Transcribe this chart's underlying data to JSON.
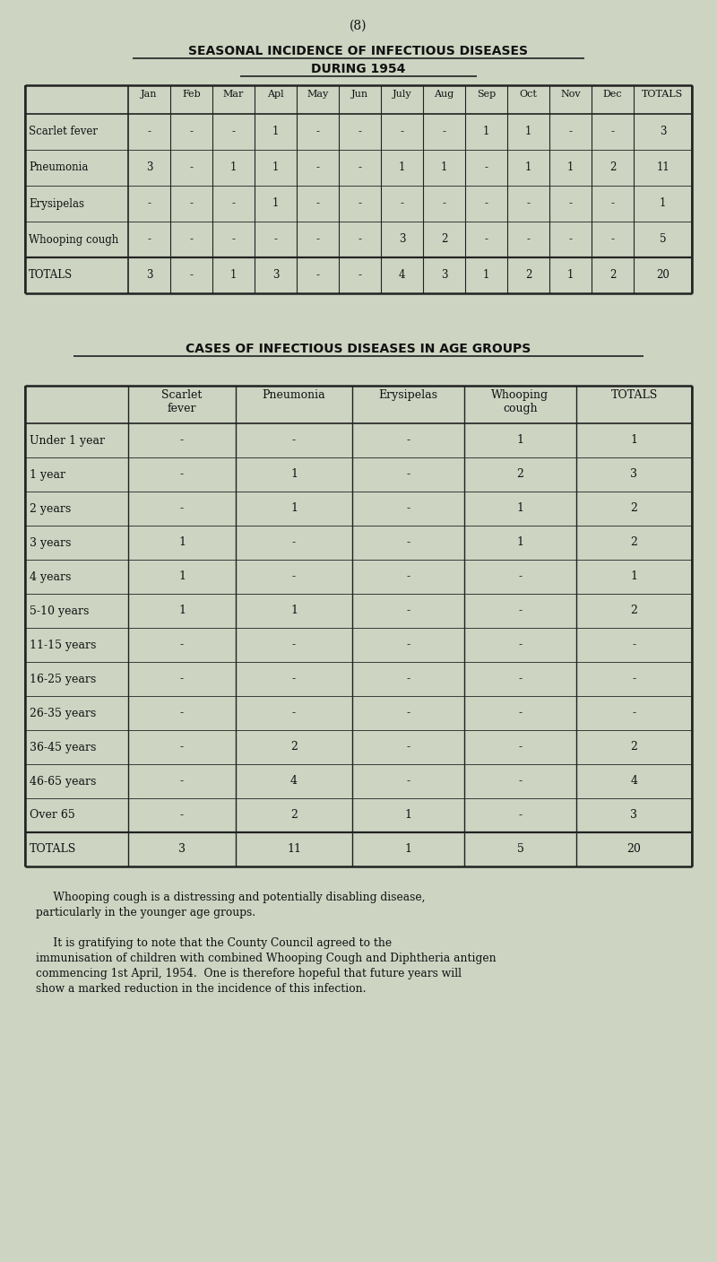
{
  "page_number": "(8)",
  "title1": "SEASONAL INCIDENCE OF INFECTIOUS DISEASES",
  "title2": "DURING 1954",
  "title3": "CASES OF INFECTIOUS DISEASES IN AGE GROUPS",
  "bg_color": "#cdd4c2",
  "text_color": "#1a1a1a",
  "table1": {
    "col_headers": [
      "",
      "Jan",
      "Feb",
      "Mar",
      "Apl",
      "May",
      "Jun",
      "July",
      "Aug",
      "Sep",
      "Oct",
      "Nov",
      "Dec",
      "TOTALS"
    ],
    "rows": [
      [
        "Scarlet fever",
        "-",
        "-",
        "-",
        "1",
        "-",
        "-",
        "-",
        "-",
        "1",
        "1",
        "-",
        "-",
        "3"
      ],
      [
        "Pneumonia",
        "3",
        "-",
        "1",
        "1",
        "-",
        "-",
        "1",
        "1",
        "-",
        "1",
        "1",
        "2",
        "11"
      ],
      [
        "Erysipelas",
        "-",
        "-",
        "-",
        "1",
        "-",
        "-",
        "-",
        "-",
        "-",
        "-",
        "-",
        "-",
        "1"
      ],
      [
        "Whooping cough",
        "-",
        "-",
        "-",
        "-",
        "-",
        "-",
        "3",
        "2",
        "-",
        "-",
        "-",
        "-",
        "5"
      ],
      [
        "TOTALS",
        "3",
        "-",
        "1",
        "3",
        "-",
        "-",
        "4",
        "3",
        "1",
        "2",
        "1",
        "2",
        "20"
      ]
    ]
  },
  "table2": {
    "col_headers": [
      "",
      "Scarlet\nfever",
      "Pneumonia",
      "Erysipelas",
      "Whooping\ncough",
      "TOTALS"
    ],
    "rows": [
      [
        "Under 1 year",
        "-",
        "-",
        "-",
        "1",
        "1"
      ],
      [
        "1 year",
        "-",
        "1",
        "-",
        "2",
        "3"
      ],
      [
        "2 years",
        "-",
        "1",
        "-",
        "1",
        "2"
      ],
      [
        "3 years",
        "1",
        "-",
        "-",
        "1",
        "2"
      ],
      [
        "4 years",
        "1",
        "-",
        "-",
        "-",
        "1"
      ],
      [
        "5-10 years",
        "1",
        "1",
        "-",
        "-",
        "2"
      ],
      [
        "11-15 years",
        "-",
        "-",
        "-",
        "-",
        "-"
      ],
      [
        "16-25 years",
        "-",
        "-",
        "-",
        "-",
        "-"
      ],
      [
        "26-35 years",
        "-",
        "-",
        "-",
        "-",
        "-"
      ],
      [
        "36-45 years",
        "-",
        "2",
        "-",
        "-",
        "2"
      ],
      [
        "46-65 years",
        "-",
        "4",
        "-",
        "-",
        "4"
      ],
      [
        "Over 65",
        "-",
        "2",
        "1",
        "-",
        "3"
      ],
      [
        "TOTALS",
        "3",
        "11",
        "1",
        "5",
        "20"
      ]
    ]
  },
  "paragraph1_line1": "     Whooping cough is a distressing and potentially disabling disease,",
  "paragraph1_line2": "particularly in the younger age groups.",
  "paragraph2_line1": "     It is gratifying to note that the County Council agreed to the",
  "paragraph2_line2": "immunisation of children with combined Whooping Cough and Diphtheria antigen",
  "paragraph2_line3": "commencing 1st April, 1954.  One is therefore hopeful that future years will",
  "paragraph2_line4": "show a marked reduction in the incidence of this infection."
}
